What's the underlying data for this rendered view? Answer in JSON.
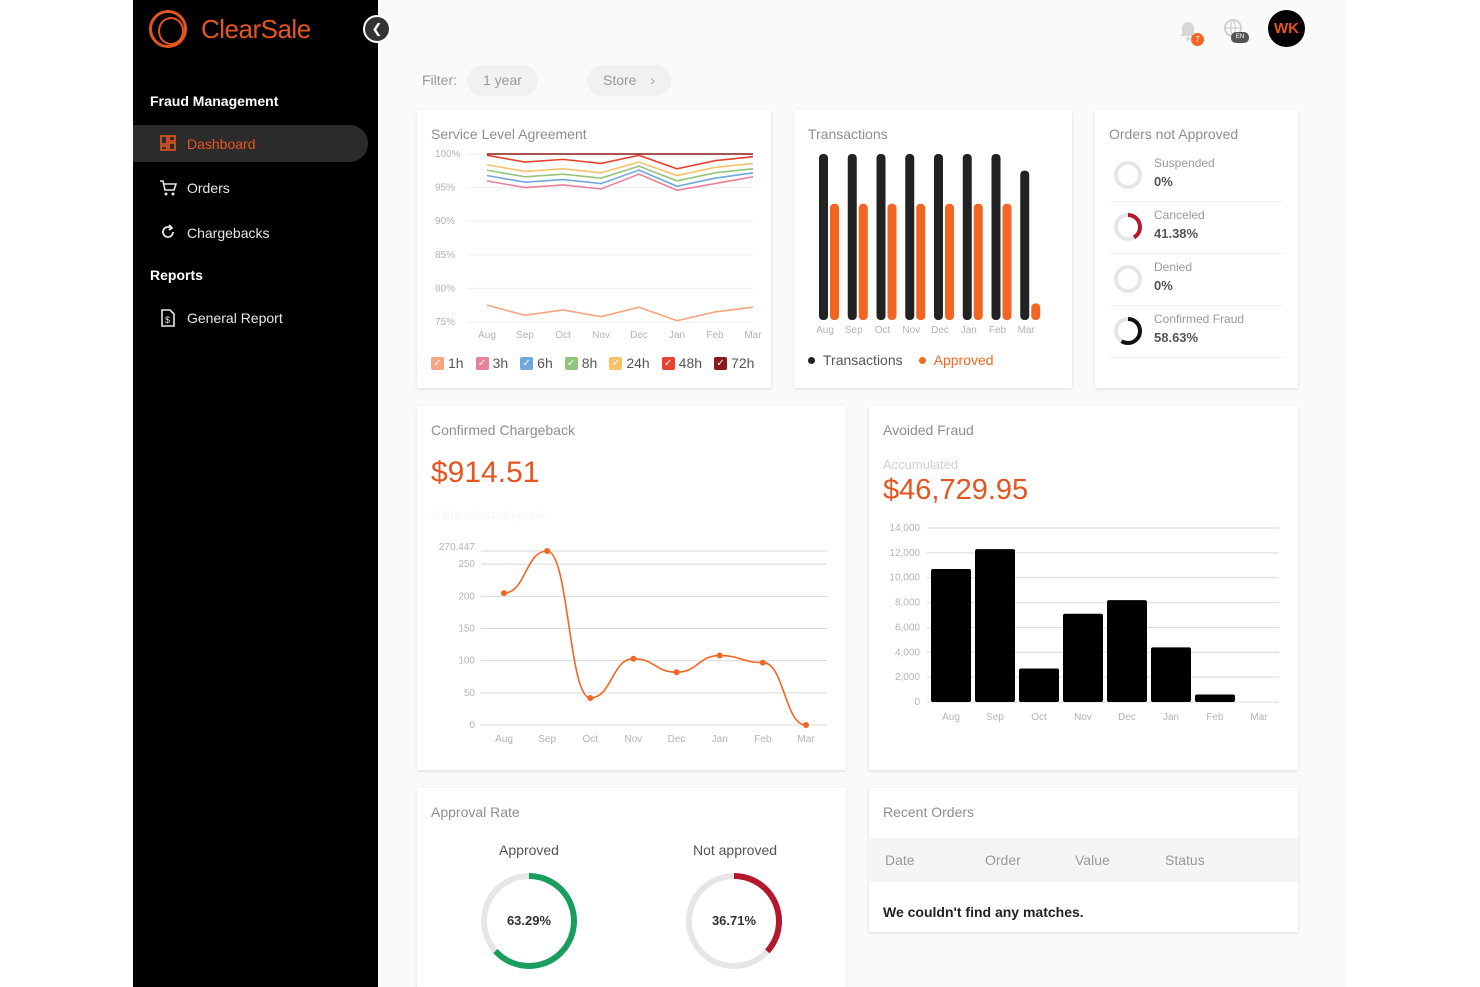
{
  "app": {
    "logo_text": "ClearSale",
    "brand_color": "#e5551f",
    "collapse_icon": "chevron-left-icon"
  },
  "sidebar": {
    "sections": [
      {
        "title": "Fraud Management",
        "items": [
          {
            "label": "Dashboard",
            "icon": "dashboard-icon",
            "active": true
          },
          {
            "label": "Orders",
            "icon": "cart-icon",
            "active": false
          },
          {
            "label": "Chargebacks",
            "icon": "refresh-icon",
            "active": false
          }
        ]
      },
      {
        "title": "Reports",
        "items": [
          {
            "label": "General Report",
            "icon": "report-icon",
            "active": false
          }
        ]
      }
    ]
  },
  "topbar": {
    "notification_count": "7",
    "language_badge": "EN",
    "avatar_initials": "WK"
  },
  "filter": {
    "label": "Filter:",
    "period": "1 year",
    "store": "Store",
    "store_chevron": "›"
  },
  "sla": {
    "title": "Service Level Agreement",
    "chart_data": {
      "type": "line",
      "x": [
        "Aug",
        "Sep",
        "Oct",
        "Nov",
        "Dec",
        "Jan",
        "Feb",
        "Mar"
      ],
      "y_ticks": [
        "100%",
        "95%",
        "90%",
        "85%",
        "80%",
        "75%"
      ],
      "ylim": [
        75,
        100
      ],
      "series": [
        {
          "name": "1h",
          "color": "#f4a582",
          "values": [
            77.5,
            76,
            76.8,
            75.8,
            77.2,
            75.2,
            76.5,
            77.2
          ]
        },
        {
          "name": "3h",
          "color": "#e8829a",
          "values": [
            96,
            95,
            95.4,
            94.8,
            97,
            94.6,
            95.6,
            96.6
          ]
        },
        {
          "name": "6h",
          "color": "#6fa8dc",
          "values": [
            96.8,
            95.8,
            96.2,
            95.6,
            97.6,
            95.2,
            96.4,
            97.2
          ]
        },
        {
          "name": "8h",
          "color": "#93c47d",
          "values": [
            97.6,
            96.6,
            97,
            96.4,
            98.2,
            96,
            97.2,
            97.8
          ]
        },
        {
          "name": "24h",
          "color": "#f6c26b",
          "values": [
            98.4,
            97.4,
            97.8,
            97.2,
            98.8,
            96.8,
            98,
            98.6
          ]
        },
        {
          "name": "48h",
          "color": "#e8412e",
          "values": [
            99.8,
            98.8,
            99.2,
            98.6,
            99.8,
            97.8,
            99,
            99.6
          ]
        },
        {
          "name": "72h",
          "color": "#8b1a1a",
          "values": [
            100,
            100,
            100,
            100,
            100,
            100,
            100,
            100
          ]
        }
      ]
    }
  },
  "transactions": {
    "title": "Transactions",
    "chart_data": {
      "type": "bar",
      "categories": [
        "Aug",
        "Sep",
        "Oct",
        "Nov",
        "Dec",
        "Jan",
        "Feb",
        "Mar"
      ],
      "series": [
        {
          "name": "Transactions",
          "color": "#222222",
          "values": [
            100,
            100,
            100,
            100,
            100,
            100,
            100,
            90
          ]
        },
        {
          "name": "Approved",
          "color": "#f26522",
          "values": [
            70,
            70,
            70,
            70,
            70,
            70,
            70,
            10
          ]
        }
      ],
      "ylim": [
        0,
        100
      ]
    }
  },
  "orders_not_approved": {
    "title": "Orders not Approved",
    "rows": [
      {
        "label": "Suspended",
        "value": "0%",
        "pct": 0,
        "color": "#dddddd"
      },
      {
        "label": "Canceled",
        "value": "41.38%",
        "pct": 41.38,
        "color": "#b5172e"
      },
      {
        "label": "Denied",
        "value": "0%",
        "pct": 0,
        "color": "#dddddd"
      },
      {
        "label": "Confirmed Fraud",
        "value": "58.63%",
        "pct": 58.63,
        "color": "#111111"
      }
    ]
  },
  "confirmed_chargeback": {
    "title": "Confirmed Chargeback",
    "value": "$914.51",
    "subtitle": "in the selected period",
    "chart_data": {
      "type": "line",
      "x": [
        "Aug",
        "Sep",
        "Oct",
        "Nov",
        "Dec",
        "Jan",
        "Feb",
        "Mar"
      ],
      "values": [
        205,
        270.447,
        42,
        103,
        82,
        108,
        97,
        0
      ],
      "y_ticks": [
        "0",
        "50",
        "100",
        "150",
        "200",
        "250",
        "270.447"
      ],
      "ylim": [
        0,
        270.447
      ],
      "color": "#f26522"
    }
  },
  "avoided_fraud": {
    "title": "Avoided Fraud",
    "sublabel": "Accumulated",
    "value": "$46,729.95",
    "chart_data": {
      "type": "bar",
      "categories": [
        "Aug",
        "Sep",
        "Oct",
        "Nov",
        "Dec",
        "Jan",
        "Feb",
        "Mar"
      ],
      "values": [
        10700,
        12300,
        2700,
        7100,
        8200,
        4400,
        600,
        0
      ],
      "y_ticks": [
        "0",
        "2,000",
        "4,000",
        "6,000",
        "8,000",
        "10,000",
        "12,000",
        "14,000"
      ],
      "ylim": [
        0,
        14000
      ],
      "color": "#000000"
    }
  },
  "approval_rate": {
    "title": "Approval Rate",
    "approved_label": "Approved",
    "approved_value": "63.29%",
    "approved_pct": 63.29,
    "approved_color": "#1a9e5f",
    "not_approved_label": "Not approved",
    "not_approved_value": "36.71%",
    "not_approved_pct": 36.71,
    "not_approved_color": "#b5172e"
  },
  "recent_orders": {
    "title": "Recent Orders",
    "columns": [
      "Date",
      "Order",
      "Value",
      "Status"
    ],
    "empty_message": "We couldn't find any matches."
  }
}
